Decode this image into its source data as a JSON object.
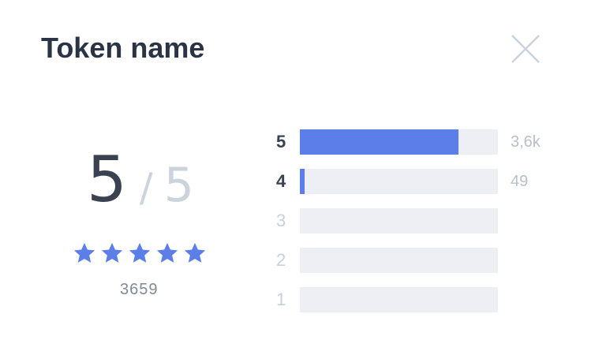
{
  "header": {
    "title": "Token name"
  },
  "rating": {
    "score": "5",
    "separator": "/",
    "max": "5",
    "stars": 5,
    "count": "3659",
    "distribution": [
      {
        "star": "5",
        "count_label": "3,6k",
        "fraction": 0.8
      },
      {
        "star": "4",
        "count_label": "49",
        "fraction": 0.025
      },
      {
        "star": "3",
        "count_label": "",
        "fraction": 0
      },
      {
        "star": "2",
        "count_label": "",
        "fraction": 0
      },
      {
        "star": "1",
        "count_label": "",
        "fraction": 0
      }
    ]
  },
  "colors": {
    "accent": "#5b7ee9",
    "track": "#eeeff4",
    "title": "#2b3444",
    "muted": "#cbd3dc"
  },
  "icons": {
    "close": "close-icon",
    "star": "star-icon"
  }
}
